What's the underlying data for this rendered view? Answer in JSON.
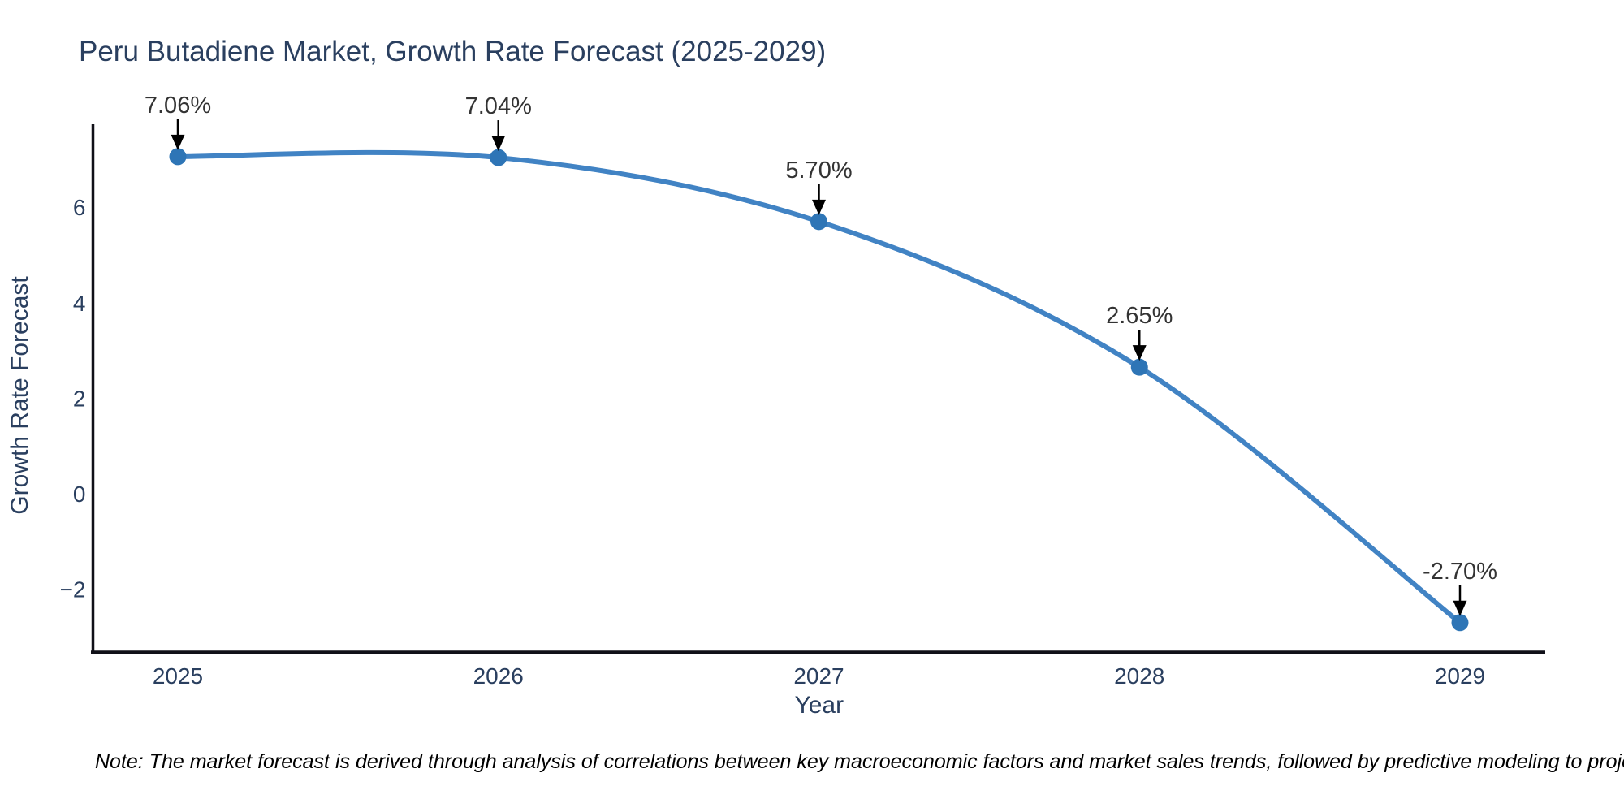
{
  "header": {
    "title": "Peru Butadiene Market, Growth Rate Forecast (2025-2029)"
  },
  "footer": {
    "note": "Note: The market forecast is derived through analysis of correlations between key macroeconomic factors and market sales trends, followed by predictive modeling to project future sales"
  },
  "chart_data": {
    "type": "line",
    "title": "Peru Butadiene Market, Growth Rate Forecast (2025-2029)",
    "xlabel": "Year",
    "ylabel": "Growth Rate Forecast",
    "x": [
      2025,
      2026,
      2027,
      2028,
      2029
    ],
    "values": [
      7.06,
      7.04,
      5.7,
      2.65,
      -2.7
    ],
    "point_labels": [
      "7.06%",
      "7.04%",
      "5.70%",
      "2.65%",
      "-2.70%"
    ],
    "x_tick_labels": [
      "2025",
      "2026",
      "2027",
      "2028",
      "2029"
    ],
    "y_ticks": [
      6,
      4,
      2,
      0,
      -2
    ],
    "y_tick_labels": [
      "6",
      "4",
      "2",
      "0",
      "−2"
    ],
    "ylim": [
      -3.3,
      7.7
    ],
    "line_shape": "spline",
    "grid": false,
    "legend_position": "none",
    "marker_style": "circle",
    "annotation_arrows": true,
    "colors": {
      "line": "#4183c4",
      "marker": "#2e75b6",
      "axis_line": "#101018",
      "tick_text": "#2a3f5f",
      "axis_title_text": "#2a3f5f",
      "annotation_text": "#333333",
      "arrow": "#000000",
      "title_text": "#2a3f5f",
      "background": "#ffffff"
    }
  }
}
